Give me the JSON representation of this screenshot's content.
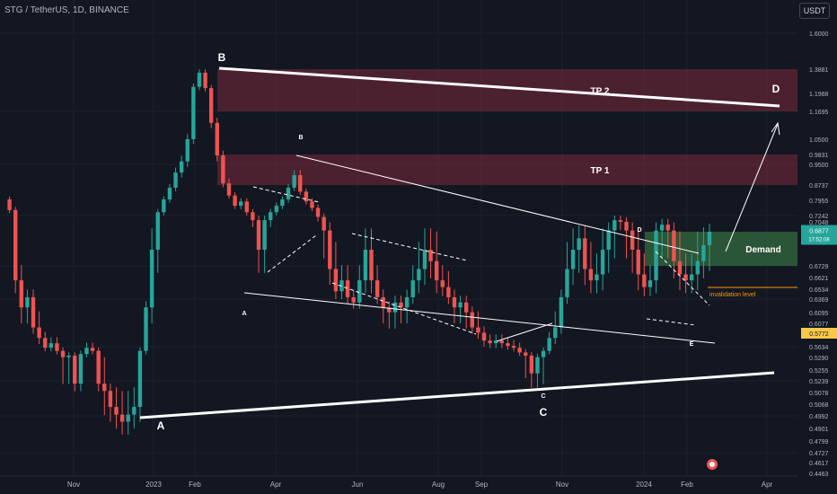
{
  "header": {
    "symbol": "STG / TetherUS, 1D, BINANCE",
    "currency": "USDT"
  },
  "colors": {
    "bg": "#131722",
    "up": "#26a69a",
    "down": "#ef5350",
    "zone": "#7b2a3a",
    "demand": "#2e5c3a",
    "grid": "#1c2030",
    "axis_text": "#b2b5be",
    "price_tag": "#26a69a",
    "last_close_tag": "#f7c948"
  },
  "chart_data": {
    "type": "candlestick",
    "title": "STG / TetherUS, 1D, BINANCE",
    "x_axis": {
      "ticks": [
        "Nov",
        "2023",
        "Feb",
        "Apr",
        "Jun",
        "Aug",
        "Sep",
        "Nov",
        "2024",
        "Feb",
        "Apr"
      ]
    },
    "y_axis": {
      "unit": "USDT",
      "ticks": [
        "1.6000",
        "1.3881",
        "1.1988",
        "1.1695",
        "1.0500",
        "0.9831",
        "0.9500",
        "0.8737",
        "0.7955",
        "0.7242",
        "0.7048",
        "0.6879",
        "0.6729",
        "0.6621",
        "0.6534",
        "0.6369",
        "0.6095",
        "0.6077",
        "0.5634",
        "0.5290",
        "0.5255",
        "0.5239",
        "0.5078",
        "0.5068",
        "0.4992",
        "0.4901",
        "0.4799",
        "0.4727",
        "0.4617",
        "0.4463"
      ]
    },
    "last_price": {
      "value": "0.6877",
      "countdown": "17:52:08"
    },
    "marked_price": "0.5772",
    "close_series": [
      0.8,
      0.75,
      0.66,
      0.62,
      0.64,
      0.6,
      0.58,
      0.56,
      0.57,
      0.55,
      0.53,
      0.535,
      0.52,
      0.54,
      0.56,
      0.55,
      0.52,
      0.51,
      0.505,
      0.5,
      0.495,
      0.5,
      0.505,
      0.55,
      0.62,
      0.68,
      0.74,
      0.8,
      0.86,
      0.92,
      0.96,
      1.05,
      1.25,
      1.36,
      1.24,
      1.12,
      0.98,
      0.88,
      0.82,
      0.77,
      0.79,
      0.74,
      0.71,
      0.68,
      0.71,
      0.74,
      0.77,
      0.8,
      0.86,
      0.91,
      0.84,
      0.79,
      0.76,
      0.72,
      0.69,
      0.67,
      0.65,
      0.66,
      0.64,
      0.63,
      0.66,
      0.68,
      0.66,
      0.64,
      0.62,
      0.61,
      0.63,
      0.62,
      0.64,
      0.66,
      0.67,
      0.68,
      0.675,
      0.66,
      0.655,
      0.64,
      0.62,
      0.63,
      0.61,
      0.6,
      0.59,
      0.575,
      0.57,
      0.575,
      0.57,
      0.565,
      0.56,
      0.545,
      0.535,
      0.525,
      0.53,
      0.55,
      0.58,
      0.6,
      0.64,
      0.67,
      0.68,
      0.685,
      0.67,
      0.66,
      0.665,
      0.68,
      0.69,
      0.71,
      0.705,
      0.69,
      0.68,
      0.665,
      0.655,
      0.66,
      0.69,
      0.7,
      0.69,
      0.675,
      0.665,
      0.66,
      0.665,
      0.675,
      0.682,
      0.688
    ],
    "zones": [
      {
        "label": "TP 2",
        "from": 1.1695,
        "to": 1.3881
      },
      {
        "label": "TP 1",
        "from": 0.8737,
        "to": 0.9831
      },
      {
        "label": "Demand",
        "from": 0.6729,
        "to": 0.6879
      }
    ],
    "annotations": [
      "A",
      "B",
      "C",
      "D",
      "A",
      "B",
      "C",
      "D",
      "E",
      "invalidation level"
    ]
  }
}
